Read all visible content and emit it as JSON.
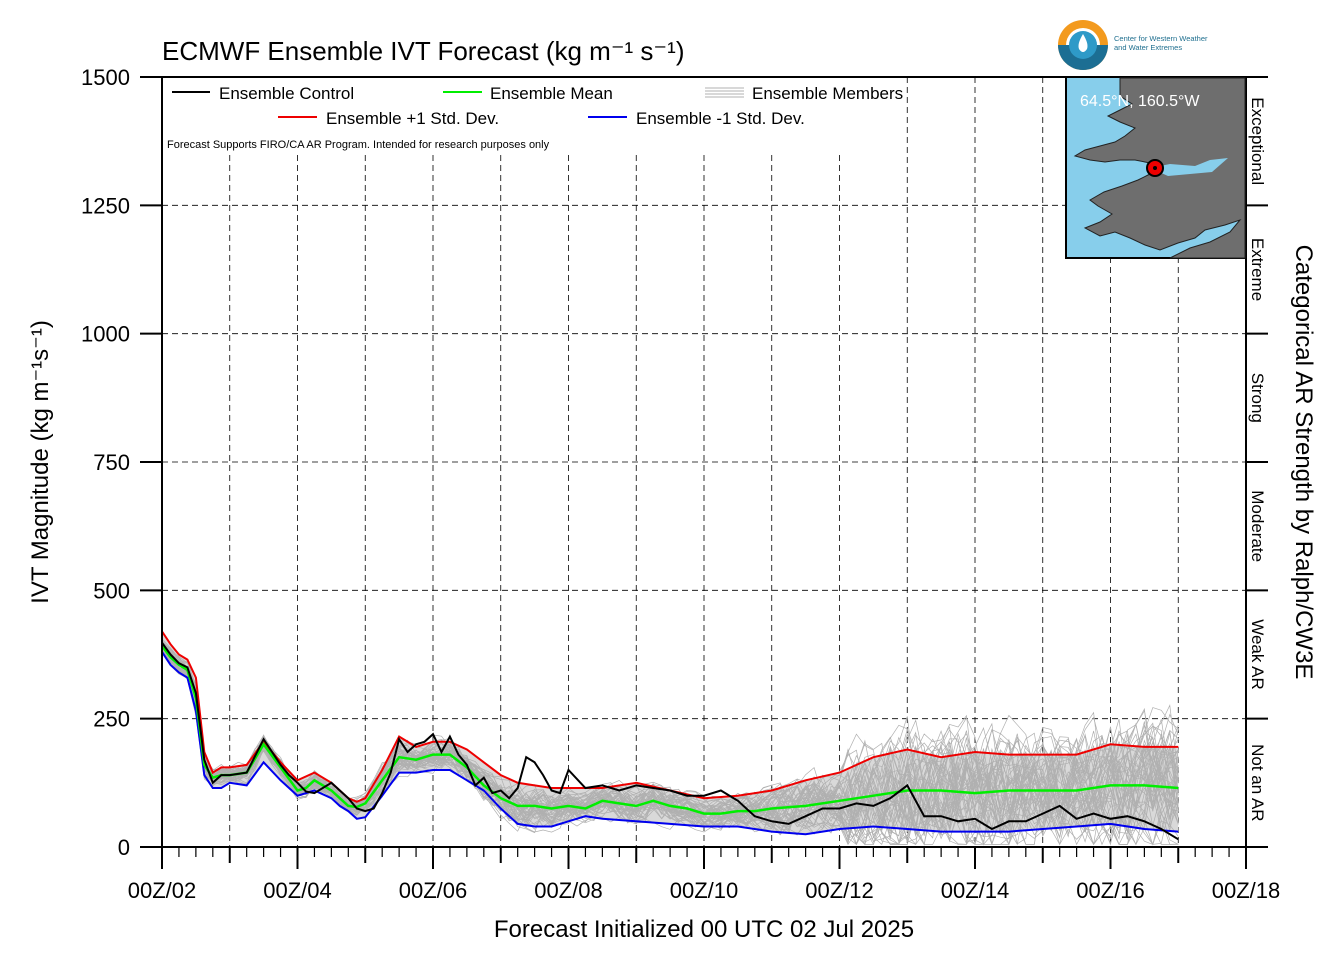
{
  "title": "ECMWF Ensemble IVT Forecast (kg m⁻¹ s⁻¹)",
  "ylabel": "IVT Magnitude (kg m⁻¹s⁻¹)",
  "xlabel": "Forecast Initialized 00 UTC 02 Jul 2025",
  "right_title": "Categorical AR Strength by Ralph/CW3E",
  "note": "Forecast Supports FIRO/CA AR Program. Intended for research purposes only",
  "logo_text": [
    "Center for Western Weather",
    "and Water Extremes"
  ],
  "inset_location": "64.5°N, 160.5°W",
  "legend": {
    "control": "Ensemble Control",
    "mean": "Ensemble Mean",
    "members": "Ensemble Members",
    "plus": "Ensemble +1 Std. Dev.",
    "minus": "Ensemble -1 Std. Dev."
  },
  "colors": {
    "control": "#000000",
    "mean": "#00ee00",
    "plus": "#ee0000",
    "minus": "#0000ee",
    "members": "#b0b0b0",
    "spread_fill": "#d9d9d9",
    "ocean": "#87ceeb",
    "land": "#6e6e6e"
  },
  "chart_data": {
    "type": "line",
    "x_unit": "forecast day (00Z of July 2025)",
    "xlim": [
      2,
      18
    ],
    "ylim": [
      0,
      1500
    ],
    "x_ticks": [
      2,
      4,
      6,
      8,
      10,
      12,
      14,
      16,
      18
    ],
    "x_tick_labels": [
      "00Z/02",
      "00Z/04",
      "00Z/06",
      "00Z/08",
      "00Z/10",
      "00Z/12",
      "00Z/14",
      "00Z/16",
      "00Z/18"
    ],
    "y_ticks": [
      0,
      250,
      500,
      750,
      1000,
      1250,
      1500
    ],
    "y_tick_labels": [
      "0",
      "250",
      "500",
      "750",
      "1000",
      "1250",
      "1500"
    ],
    "categories": [
      {
        "label": "Not an AR",
        "range": [
          0,
          250
        ]
      },
      {
        "label": "Weak AR",
        "range": [
          250,
          500
        ]
      },
      {
        "label": "Moderate",
        "range": [
          500,
          750
        ]
      },
      {
        "label": "Strong",
        "range": [
          750,
          1000
        ]
      },
      {
        "label": "Extreme",
        "range": [
          1000,
          1250
        ]
      },
      {
        "label": "Exceptional",
        "range": [
          1250,
          1500
        ]
      }
    ],
    "grid": true,
    "series": [
      {
        "name": "Ensemble Control",
        "key": "control",
        "x": [
          2.0,
          2.125,
          2.25,
          2.375,
          2.5,
          2.625,
          2.75,
          2.875,
          3.0,
          3.25,
          3.5,
          3.75,
          3.875,
          4.0,
          4.125,
          4.25,
          4.5,
          4.625,
          4.75,
          4.875,
          5.0,
          5.125,
          5.25,
          5.375,
          5.5,
          5.625,
          5.75,
          5.875,
          6.0,
          6.125,
          6.25,
          6.375,
          6.5,
          6.625,
          6.75,
          6.875,
          7.0,
          7.125,
          7.25,
          7.375,
          7.5,
          7.625,
          7.75,
          7.875,
          8.0,
          8.25,
          8.5,
          8.75,
          9.0,
          9.25,
          9.5,
          9.75,
          10.0,
          10.25,
          10.5,
          10.75,
          11.0,
          11.25,
          11.5,
          11.75,
          12.0,
          12.25,
          12.5,
          12.75,
          13.0,
          13.25,
          13.5,
          13.75,
          14.0,
          14.25,
          14.5,
          14.75,
          15.0,
          15.25,
          15.5,
          15.75,
          16.0,
          16.25,
          16.5,
          16.75,
          17.0
        ],
        "y": [
          398,
          375,
          358,
          350,
          300,
          170,
          125,
          140,
          140,
          145,
          210,
          160,
          140,
          125,
          108,
          105,
          125,
          110,
          95,
          75,
          70,
          75,
          105,
          145,
          210,
          185,
          200,
          205,
          220,
          185,
          215,
          180,
          160,
          120,
          135,
          105,
          110,
          95,
          115,
          175,
          165,
          140,
          110,
          105,
          150,
          115,
          120,
          110,
          120,
          115,
          110,
          100,
          100,
          110,
          90,
          60,
          50,
          45,
          60,
          75,
          75,
          85,
          80,
          95,
          120,
          60,
          60,
          50,
          55,
          35,
          50,
          50,
          65,
          80,
          55,
          65,
          55,
          60,
          50,
          35,
          15
        ]
      },
      {
        "name": "Ensemble Mean",
        "key": "mean",
        "x": [
          2.0,
          2.125,
          2.25,
          2.375,
          2.5,
          2.625,
          2.75,
          2.875,
          3.0,
          3.25,
          3.5,
          3.75,
          4.0,
          4.125,
          4.25,
          4.5,
          4.625,
          4.75,
          4.875,
          5.0,
          5.25,
          5.5,
          5.75,
          6.0,
          6.25,
          6.5,
          6.75,
          7.0,
          7.25,
          7.5,
          7.75,
          8.0,
          8.25,
          8.5,
          8.75,
          9.0,
          9.25,
          9.5,
          9.75,
          10.0,
          10.25,
          10.5,
          10.75,
          11.0,
          11.5,
          12.0,
          12.5,
          13.0,
          13.5,
          14.0,
          14.5,
          15.0,
          15.5,
          16.0,
          16.5,
          17.0
        ],
        "y": [
          392,
          370,
          355,
          345,
          290,
          160,
          135,
          140,
          140,
          145,
          200,
          155,
          110,
          115,
          130,
          110,
          95,
          80,
          78,
          85,
          130,
          175,
          170,
          180,
          180,
          155,
          120,
          95,
          80,
          80,
          75,
          80,
          75,
          90,
          85,
          80,
          90,
          80,
          75,
          65,
          65,
          70,
          70,
          75,
          80,
          90,
          100,
          110,
          110,
          105,
          110,
          110,
          110,
          120,
          120,
          115
        ]
      },
      {
        "name": "Ensemble +1 Std. Dev.",
        "key": "plus",
        "x": [
          2.0,
          2.125,
          2.25,
          2.375,
          2.5,
          2.625,
          2.75,
          2.875,
          3.0,
          3.25,
          3.5,
          3.75,
          4.0,
          4.25,
          4.5,
          4.625,
          4.75,
          4.875,
          5.0,
          5.25,
          5.5,
          5.75,
          6.0,
          6.25,
          6.5,
          6.75,
          7.0,
          7.25,
          7.5,
          7.75,
          8.0,
          8.5,
          9.0,
          9.5,
          10.0,
          10.5,
          11.0,
          11.5,
          12.0,
          12.5,
          13.0,
          13.5,
          14.0,
          14.5,
          15.0,
          15.5,
          16.0,
          16.5,
          17.0
        ],
        "y": [
          420,
          395,
          375,
          365,
          330,
          185,
          145,
          155,
          155,
          160,
          205,
          165,
          130,
          145,
          125,
          110,
          95,
          88,
          95,
          150,
          215,
          195,
          205,
          205,
          190,
          165,
          140,
          125,
          120,
          115,
          115,
          115,
          125,
          110,
          95,
          100,
          110,
          130,
          145,
          175,
          190,
          175,
          185,
          180,
          180,
          180,
          200,
          195,
          195
        ]
      },
      {
        "name": "Ensemble -1 Std. Dev.",
        "key": "minus",
        "x": [
          2.0,
          2.125,
          2.25,
          2.375,
          2.5,
          2.625,
          2.75,
          2.875,
          3.0,
          3.25,
          3.5,
          3.75,
          4.0,
          4.25,
          4.5,
          4.625,
          4.75,
          4.875,
          5.0,
          5.25,
          5.5,
          5.75,
          6.0,
          6.25,
          6.5,
          6.75,
          7.0,
          7.25,
          7.5,
          7.75,
          8.0,
          8.25,
          8.5,
          9.0,
          9.5,
          10.0,
          10.5,
          11.0,
          11.5,
          12.0,
          12.5,
          13.0,
          13.5,
          14.0,
          14.5,
          15.0,
          15.5,
          16.0,
          16.5,
          17.0
        ],
        "y": [
          380,
          355,
          340,
          330,
          265,
          140,
          115,
          115,
          125,
          120,
          165,
          130,
          100,
          110,
          95,
          80,
          70,
          55,
          58,
          100,
          145,
          145,
          150,
          150,
          130,
          110,
          75,
          45,
          40,
          40,
          50,
          60,
          55,
          50,
          45,
          40,
          40,
          30,
          25,
          35,
          40,
          35,
          30,
          30,
          30,
          35,
          40,
          45,
          35,
          30
        ]
      }
    ]
  }
}
